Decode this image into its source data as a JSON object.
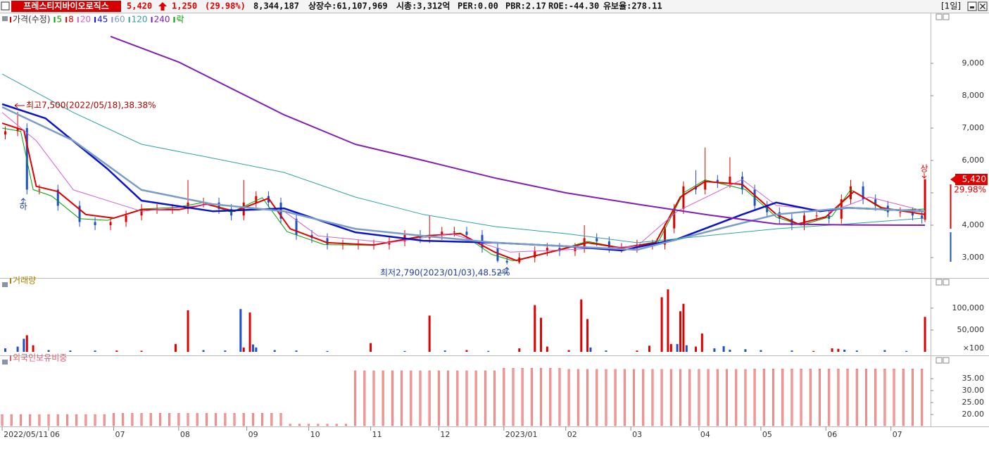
{
  "header": {
    "name": "프레스티지바이오로직스",
    "price": "5,420",
    "change": "1,250",
    "change_pct": "(29.98%)",
    "volume": "8,344,187",
    "listed": "상장수:61,107,969",
    "market_cap": "시총:3,312억",
    "per": "PER:0.00",
    "pbr": "PBR:2.17",
    "roe": "ROE:-44.30",
    "reserve": "유보율:278.11",
    "period": "[1일]"
  },
  "chart_data": [
    {
      "type": "candlestick",
      "name": "가격(수정)",
      "up_color": "#e00000",
      "down_color": "#1e50c8",
      "x": [
        1,
        5,
        8,
        12,
        18,
        25,
        30,
        35,
        40,
        45,
        50,
        55,
        60,
        65,
        70,
        74,
        78,
        82,
        86,
        90,
        95,
        100,
        105,
        110,
        115,
        120,
        125,
        130,
        135,
        138,
        142,
        146,
        150,
        155,
        160,
        163,
        167,
        172,
        176,
        180,
        185,
        188,
        192,
        196,
        200,
        205,
        210,
        214,
        217,
        220,
        224,
        227,
        231,
        235,
        239,
        243,
        247,
        251,
        255,
        259,
        263,
        267,
        271,
        274,
        278,
        282,
        286,
        290,
        294,
        297,
        298
      ],
      "open": [
        6800,
        6900,
        7000,
        5100,
        5100,
        4600,
        4100,
        4000,
        4100,
        4300,
        4500,
        4500,
        4500,
        4700,
        4700,
        4500,
        4300,
        4700,
        4900,
        4700,
        4200,
        3700,
        3600,
        3400,
        3400,
        3400,
        3400,
        3500,
        3700,
        3600,
        3700,
        3800,
        3800,
        3700,
        3300,
        2900,
        2850,
        3000,
        3200,
        3300,
        3200,
        3300,
        3600,
        3500,
        3300,
        3300,
        3400,
        3400,
        3900,
        4500,
        5200,
        5100,
        5400,
        5300,
        5500,
        5100,
        4600,
        4400,
        4200,
        4000,
        4300,
        4300,
        4200,
        4800,
        5200,
        4800,
        4600,
        4400,
        4400,
        4300,
        4170
      ],
      "high": [
        7050,
        7500,
        7150,
        5250,
        5250,
        4750,
        4250,
        4250,
        4450,
        4650,
        4650,
        4650,
        5400,
        4850,
        4850,
        4650,
        5400,
        5050,
        5050,
        4850,
        4350,
        3850,
        3750,
        3550,
        3550,
        3550,
        3650,
        3850,
        3850,
        4300,
        3950,
        3950,
        3950,
        3850,
        3450,
        3050,
        3150,
        3350,
        3450,
        3450,
        3450,
        4000,
        3750,
        3650,
        3450,
        3550,
        3550,
        4050,
        4650,
        5350,
        5700,
        6400,
        5550,
        6100,
        5650,
        5250,
        4750,
        4550,
        4350,
        4450,
        4450,
        4450,
        4950,
        5400,
        5350,
        4950,
        4750,
        4550,
        4550,
        4450,
        5420
      ],
      "low": [
        6650,
        6750,
        4950,
        4950,
        4450,
        3950,
        3850,
        3850,
        3950,
        4150,
        4350,
        4350,
        4350,
        4550,
        4350,
        4150,
        4150,
        4550,
        4550,
        4050,
        3550,
        3450,
        3250,
        3250,
        3250,
        3250,
        3250,
        3350,
        3450,
        3450,
        3550,
        3650,
        3550,
        3150,
        2850,
        2790,
        2800,
        2850,
        3050,
        3050,
        3050,
        3150,
        3350,
        3150,
        3150,
        3150,
        3250,
        3250,
        3750,
        4350,
        4950,
        4950,
        5150,
        5150,
        4950,
        4450,
        4250,
        4050,
        3850,
        3850,
        4150,
        4050,
        4050,
        4650,
        4650,
        4450,
        4250,
        4250,
        4150,
        4050,
        4100
      ],
      "close": [
        6900,
        7000,
        5100,
        5100,
        4600,
        4100,
        4000,
        4100,
        4300,
        4500,
        4500,
        4500,
        4700,
        4700,
        4500,
        4300,
        4700,
        4900,
        4700,
        4200,
        3700,
        3600,
        3400,
        3400,
        3400,
        3400,
        3500,
        3700,
        3600,
        3700,
        3800,
        3800,
        3700,
        3300,
        2900,
        2850,
        3000,
        3200,
        3300,
        3200,
        3300,
        3600,
        3500,
        3300,
        3300,
        3400,
        3400,
        3900,
        4500,
        5200,
        5100,
        5400,
        5300,
        5500,
        5100,
        4600,
        4400,
        4200,
        4000,
        4300,
        4300,
        4200,
        4800,
        5200,
        4800,
        4600,
        4400,
        4400,
        4300,
        4200,
        5420
      ],
      "series": [
        {
          "name": "5",
          "color": "#00a000",
          "width": 1,
          "x": [
            0,
            6,
            10,
            16,
            25,
            34,
            45,
            56,
            65,
            74,
            84,
            92,
            104,
            120,
            136,
            148,
            158,
            165,
            180,
            189,
            200,
            212,
            220,
            227,
            240,
            250,
            258,
            268,
            274,
            285,
            298
          ],
          "values": [
            7000,
            6900,
            5100,
            4900,
            4200,
            4150,
            4500,
            4550,
            4700,
            4400,
            4850,
            3800,
            3400,
            3380,
            3650,
            3760,
            3100,
            2900,
            3250,
            3500,
            3300,
            3500,
            5000,
            5400,
            5100,
            4250,
            4000,
            4280,
            5100,
            4450,
            4500
          ]
        },
        {
          "name": "8",
          "color": "#e00000",
          "width": 2,
          "x": [
            0,
            7,
            11,
            18,
            27,
            36,
            45,
            57,
            66,
            75,
            86,
            93,
            105,
            120,
            136,
            148,
            159,
            166,
            180,
            189,
            200,
            211,
            219,
            227,
            239,
            250,
            257,
            266,
            275,
            284,
            298
          ],
          "values": [
            7150,
            6930,
            5200,
            5040,
            4330,
            4220,
            4480,
            4480,
            4650,
            4430,
            4830,
            3890,
            3460,
            3390,
            3670,
            3740,
            3170,
            2910,
            3240,
            3460,
            3300,
            3460,
            4870,
            5350,
            5260,
            4330,
            4040,
            4260,
            5040,
            4540,
            4330
          ]
        },
        {
          "name": "20",
          "color": "#d060d0",
          "width": 1,
          "x": [
            0,
            11,
            23,
            45,
            68,
            91,
            102,
            125,
            145,
            164,
            182,
            205,
            218,
            239,
            250,
            268,
            280,
            298
          ],
          "values": [
            7480,
            6610,
            5090,
            4430,
            4650,
            4430,
            3670,
            3460,
            3740,
            3170,
            3240,
            3350,
            4430,
            5410,
            4610,
            4430,
            4870,
            4430
          ]
        },
        {
          "name": "45",
          "color": "#0a14c8",
          "width": 2.5,
          "x": [
            0,
            14,
            34,
            45,
            68,
            91,
            114,
            136,
            159,
            182,
            200,
            218,
            239,
            250,
            264,
            273,
            298
          ],
          "values": [
            7740,
            7300,
            5740,
            4760,
            4430,
            4520,
            3780,
            3520,
            3460,
            3350,
            3220,
            3570,
            4330,
            4700,
            4430,
            4540,
            4430
          ]
        },
        {
          "name": "60",
          "color": "#7a9cc8",
          "width": 2.5,
          "x": [
            0,
            23,
            45,
            68,
            91,
            114,
            136,
            159,
            182,
            205,
            227,
            250,
            273,
            298
          ],
          "values": [
            7650,
            6610,
            5090,
            4650,
            4430,
            3890,
            3670,
            3460,
            3350,
            3240,
            3780,
            4330,
            4540,
            4430
          ]
        },
        {
          "name": "120",
          "color": "#30a0a0",
          "width": 1,
          "x": [
            0,
            23,
            45,
            68,
            91,
            114,
            136,
            159,
            182,
            205,
            227,
            250,
            273,
            298
          ],
          "values": [
            8670,
            7480,
            6500,
            6070,
            5630,
            4870,
            4330,
            3960,
            3740,
            3460,
            3670,
            3890,
            4040,
            4220
          ]
        },
        {
          "name": "240",
          "color": "#8020b0",
          "width": 2,
          "x": [
            35,
            57,
            91,
            114,
            136,
            159,
            182,
            205,
            227,
            250,
            273,
            298
          ],
          "values": [
            9830,
            9040,
            7410,
            6500,
            6000,
            5460,
            5000,
            4650,
            4330,
            4040,
            4010,
            4000
          ]
        }
      ],
      "legend_extra": {
        "name": "락",
        "color": "#00a000"
      },
      "high_note": "최고7,500(2022/05/18),38.38%",
      "low_note": "최저2,790(2023/01/03),48.52%",
      "limit_down_mark": "하",
      "limit_up_mark": "상",
      "price_tag": "5,420",
      "change_tag": "29.98%",
      "xlim": [
        -0.7,
        299.8
      ],
      "xticks": [
        {
          "value": 0,
          "label": "2022/05/11"
        },
        {
          "value": 15,
          "label": "06"
        },
        {
          "value": 36,
          "label": "07"
        },
        {
          "value": 57,
          "label": "08"
        },
        {
          "value": 79,
          "label": "09"
        },
        {
          "value": 99,
          "label": "10"
        },
        {
          "value": 119,
          "label": "11"
        },
        {
          "value": 141,
          "label": "12"
        },
        {
          "value": 162,
          "label": "2023/01"
        },
        {
          "value": 182,
          "label": "02"
        },
        {
          "value": 203,
          "label": "03"
        },
        {
          "value": 225,
          "label": "04"
        },
        {
          "value": 245,
          "label": "05"
        },
        {
          "value": 266,
          "label": "06"
        },
        {
          "value": 287,
          "label": "07"
        }
      ],
      "ylim": [
        2370,
        10565
      ],
      "yticks": [
        {
          "value": 3000,
          "label": "3,000"
        },
        {
          "value": 4000,
          "label": "4,000"
        },
        {
          "value": 5000,
          "label": "5,000"
        },
        {
          "value": 6000,
          "label": "6,000"
        },
        {
          "value": 7000,
          "label": "7,000"
        },
        {
          "value": 8000,
          "label": "8,000"
        },
        {
          "value": 9000,
          "label": "9,000"
        }
      ]
    },
    {
      "type": "bar",
      "title": "거래량",
      "unit_label": "×100",
      "x": [
        1,
        5,
        7,
        8,
        10,
        15,
        22,
        30,
        37,
        45,
        56,
        60,
        65,
        72,
        77,
        78,
        80,
        81,
        82,
        88,
        95,
        105,
        119,
        130,
        138,
        143,
        150,
        157,
        167,
        172,
        174,
        176,
        183,
        187,
        189,
        190,
        195,
        205,
        209,
        213,
        215,
        216,
        218,
        219,
        220,
        221,
        224,
        226,
        230,
        233,
        235,
        240,
        245,
        255,
        262,
        268,
        270,
        272,
        276,
        285,
        292,
        298
      ],
      "values": [
        8000,
        12000,
        30000,
        38000,
        15000,
        4000,
        3000,
        3000,
        3000,
        2500,
        18000,
        95000,
        4000,
        3000,
        98000,
        10000,
        90000,
        17000,
        10000,
        4000,
        3000,
        2000,
        20000,
        2000,
        83000,
        3000,
        4000,
        2000,
        8000,
        107000,
        78000,
        12000,
        4000,
        120000,
        75000,
        10000,
        3000,
        3000,
        14000,
        125000,
        143000,
        18000,
        18000,
        93000,
        110000,
        15000,
        12000,
        42000,
        8000,
        13000,
        5000,
        6000,
        4000,
        3000,
        2000,
        8000,
        7000,
        5000,
        3000,
        4000,
        2000,
        80000
      ],
      "colors": [
        "#1e50c8",
        "#1e50c8",
        "#1e50c8",
        "#e00000",
        "#e00000",
        "#1e50c8",
        "#1e50c8",
        "#1e50c8",
        "#e00000",
        "#e00000",
        "#e00000",
        "#e00000",
        "#1e50c8",
        "#1e50c8",
        "#1e50c8",
        "#e00000",
        "#e00000",
        "#1e50c8",
        "#1e50c8",
        "#1e50c8",
        "#1e50c8",
        "#1e50c8",
        "#e00000",
        "#1e50c8",
        "#e00000",
        "#1e50c8",
        "#e00000",
        "#1e50c8",
        "#e00000",
        "#e00000",
        "#e00000",
        "#e00000",
        "#e00000",
        "#e00000",
        "#e00000",
        "#1e50c8",
        "#1e50c8",
        "#e00000",
        "#e00000",
        "#e00000",
        "#e00000",
        "#e00000",
        "#1e50c8",
        "#e00000",
        "#e00000",
        "#1e50c8",
        "#e00000",
        "#e00000",
        "#1e50c8",
        "#1e50c8",
        "#1e50c8",
        "#1e50c8",
        "#1e50c8",
        "#1e50c8",
        "#e00000",
        "#e00000",
        "#e00000",
        "#1e50c8",
        "#1e50c8",
        "#1e50c8",
        "#1e50c8",
        "#e00000"
      ],
      "title_color": "#b08000",
      "ylim": [
        0,
        153000
      ],
      "yticks": [
        {
          "value": 50000,
          "label": "50,000"
        },
        {
          "value": 100000,
          "label": "100,000"
        }
      ]
    },
    {
      "type": "bar",
      "title": "외국인보유비중",
      "color": "#f29a9a",
      "title_color": "#e06070",
      "x": [
        0,
        3,
        6,
        9,
        12,
        15,
        18,
        21,
        24,
        27,
        30,
        33,
        36,
        39,
        42,
        45,
        48,
        51,
        54,
        57,
        60,
        63,
        66,
        69,
        72,
        75,
        78,
        81,
        84,
        87,
        90,
        93,
        96,
        99,
        102,
        105,
        108,
        111,
        114,
        117,
        120,
        123,
        126,
        129,
        132,
        135,
        138,
        141,
        144,
        147,
        150,
        153,
        156,
        159,
        162,
        165,
        168,
        171,
        174,
        177,
        180,
        183,
        186,
        189,
        192,
        195,
        198,
        201,
        204,
        207,
        210,
        213,
        216,
        219,
        222,
        225,
        228,
        231,
        234,
        237,
        240,
        243,
        246,
        249,
        252,
        255,
        258,
        261,
        264,
        267,
        270,
        273,
        276,
        279,
        282,
        285,
        288,
        291,
        294,
        297
      ],
      "values": [
        20.0,
        20.0,
        20.0,
        20.0,
        20.0,
        20.0,
        20.0,
        20.0,
        20.0,
        20.0,
        20.0,
        20.0,
        20.5,
        20.5,
        20.5,
        20.5,
        20.5,
        20.5,
        20.5,
        20.5,
        20.5,
        20.5,
        20.5,
        20.5,
        20.5,
        20.5,
        20.5,
        20.5,
        20.5,
        20.5,
        20.5,
        16.0,
        16.0,
        16.0,
        16.0,
        16.0,
        16.0,
        16.0,
        38.3,
        38.3,
        38.3,
        38.3,
        38.3,
        38.3,
        38.3,
        38.3,
        38.3,
        38.3,
        38.3,
        38.3,
        38.3,
        38.3,
        38.3,
        38.3,
        39.4,
        39.4,
        39.4,
        39.4,
        39.4,
        39.4,
        39.4,
        38.9,
        38.9,
        38.9,
        38.9,
        38.9,
        38.9,
        38.9,
        38.9,
        38.9,
        38.9,
        38.9,
        38.9,
        38.9,
        38.9,
        38.9,
        38.9,
        38.9,
        38.9,
        38.9,
        38.9,
        39.1,
        39.1,
        39.1,
        39.1,
        39.1,
        39.1,
        39.1,
        39.1,
        39.1,
        39.1,
        39.1,
        39.1,
        39.1,
        39.1,
        39.1,
        39.1,
        39.1,
        39.1,
        39.1
      ],
      "ylim": [
        15.3,
        41.8
      ],
      "yticks": [
        {
          "value": 20,
          "label": "20.00"
        },
        {
          "value": 25,
          "label": "25.00"
        },
        {
          "value": 30,
          "label": "30.00"
        },
        {
          "value": 35,
          "label": "35.00"
        }
      ]
    }
  ]
}
